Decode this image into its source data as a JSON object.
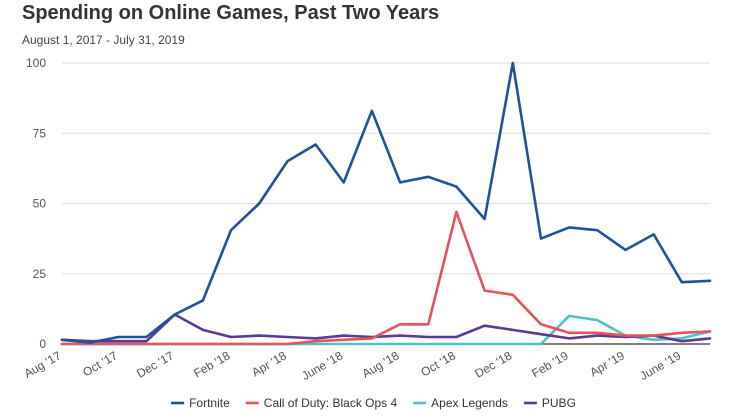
{
  "header": {
    "title": "Spending on Online Games, Past Two Years",
    "subtitle": "August 1, 2017 - July 31, 2019"
  },
  "chart_data": {
    "type": "line",
    "title": "Spending on Online Games, Past Two Years",
    "subtitle": "August 1, 2017 - July 31, 2019",
    "xlabel": "",
    "ylabel": "",
    "ylim": [
      0,
      100
    ],
    "yticks": [
      0,
      25,
      50,
      75,
      100
    ],
    "grid": true,
    "legend_position": "bottom",
    "x": [
      "Aug '17",
      "Sep '17",
      "Oct '17",
      "Nov '17",
      "Dec '17",
      "Jan '18",
      "Feb '18",
      "Mar '18",
      "Apr '18",
      "May '18",
      "June '18",
      "July '18",
      "Aug '18",
      "Sep '18",
      "Oct '18",
      "Nov '18",
      "Dec '18",
      "Jan '19",
      "Feb '19",
      "Mar '19",
      "Apr '19",
      "May '19",
      "June '19",
      "July '19"
    ],
    "x_tick_labels": [
      "Aug '17",
      "Oct '17",
      "Dec '17",
      "Feb '18",
      "Apr '18",
      "June '18",
      "Aug '18",
      "Oct '18",
      "Dec '18",
      "Feb '19",
      "Apr '19",
      "June '19"
    ],
    "series": [
      {
        "name": "Fortnite",
        "color": "#1f5297",
        "values": [
          1.5,
          0.5,
          2.5,
          2.5,
          10.5,
          15.5,
          40.5,
          50,
          65,
          71,
          57.5,
          83,
          57.5,
          59.5,
          56,
          44.5,
          100,
          37.5,
          41.5,
          40.5,
          33.5,
          39,
          22,
          22.5
        ]
      },
      {
        "name": "Call of Duty: Black Ops 4",
        "color": "#e8525a",
        "values": [
          0,
          0,
          0,
          0,
          0,
          0,
          0,
          0,
          0,
          1,
          1.5,
          2,
          7,
          7,
          47,
          19,
          17.5,
          7,
          4,
          4,
          3,
          3,
          4,
          4.5
        ]
      },
      {
        "name": "Apex Legends",
        "color": "#4cc3c6",
        "values": [
          0,
          0,
          0,
          0,
          0,
          0,
          0,
          0,
          0,
          0,
          0,
          0,
          0,
          0,
          0,
          0,
          0,
          0,
          10,
          8.5,
          3,
          1.5,
          2,
          4.5
        ]
      },
      {
        "name": "PUBG",
        "color": "#5b3a91",
        "values": [
          1.5,
          1,
          1,
          1,
          10.5,
          5,
          2.5,
          3,
          2.5,
          2,
          3,
          2.5,
          3,
          2.5,
          2.5,
          6.5,
          5,
          3.5,
          2,
          3,
          2.5,
          3,
          1,
          2
        ]
      }
    ],
    "colors": {
      "grid": "#dddddd",
      "axis": "#333333"
    }
  }
}
